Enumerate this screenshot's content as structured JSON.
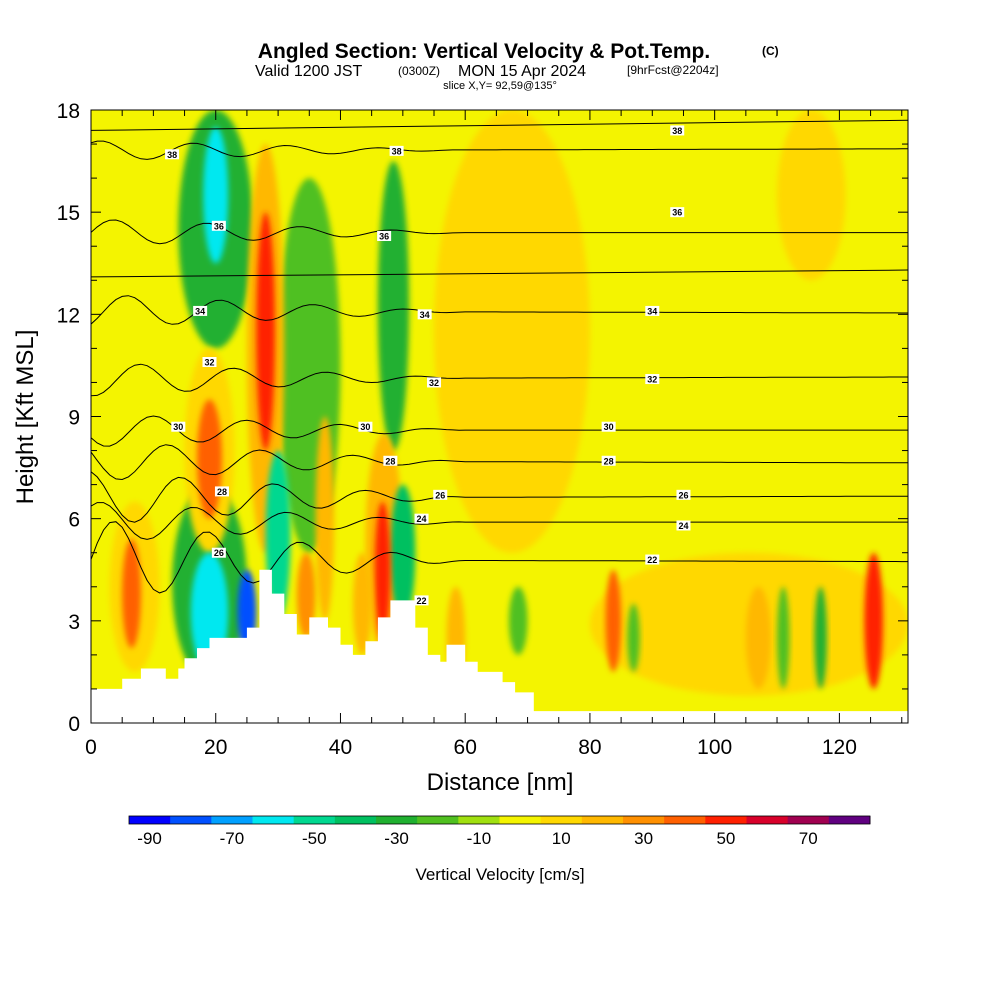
{
  "title": {
    "main": "Angled Section: Vertical Velocity & Pot.Temp.",
    "units": "(C)",
    "valid_prefix": "Valid 1200 JST",
    "valid_zulu": "(0300Z)",
    "valid_date": "MON 15 Apr 2024",
    "forecast": "[9hrFcst@2204z]",
    "slice": "slice X,Y= 92,59@135°"
  },
  "chart_data": {
    "type": "heatmap",
    "xlabel": "Distance [nm]",
    "ylabel": "Height [Kft MSL]",
    "xlim": [
      0,
      131
    ],
    "ylim": [
      0,
      18
    ],
    "x_ticks": [
      0,
      20,
      40,
      60,
      80,
      100,
      120
    ],
    "y_ticks": [
      0,
      3,
      6,
      9,
      12,
      15,
      18
    ],
    "colorbar": {
      "label": "Vertical Velocity [cm/s]",
      "tick_labels": [
        -90,
        -70,
        -50,
        -30,
        -10,
        10,
        30,
        50,
        70
      ],
      "levels": [
        -90,
        -80,
        -70,
        -60,
        -50,
        -40,
        -30,
        -20,
        -10,
        0,
        10,
        20,
        30,
        40,
        50,
        60,
        70,
        80
      ],
      "colors": [
        "#0000ff",
        "#0050ff",
        "#00a0ff",
        "#00e8f0",
        "#00d890",
        "#00c060",
        "#20b030",
        "#50c020",
        "#a0e010",
        "#f4f400",
        "#ffd800",
        "#ffb800",
        "#ff9000",
        "#ff6000",
        "#ff2000",
        "#d8002a",
        "#a00050",
        "#600080"
      ]
    },
    "background_value": 0,
    "cells": [
      {
        "x": [
          5,
          8
        ],
        "y": [
          2.2,
          5.4
        ],
        "v": 45
      },
      {
        "x": [
          3,
          11
        ],
        "y": [
          1.5,
          6.5
        ],
        "v": 15
      },
      {
        "x": [
          16,
          22
        ],
        "y": [
          1.5,
          5
        ],
        "v": -55
      },
      {
        "x": [
          13,
          25
        ],
        "y": [
          1.2,
          7
        ],
        "v": -25
      },
      {
        "x": [
          17,
          21
        ],
        "y": [
          6,
          9.5
        ],
        "v": 45
      },
      {
        "x": [
          15,
          23
        ],
        "y": [
          5,
          11
        ],
        "v": 15
      },
      {
        "x": [
          18,
          22
        ],
        "y": [
          13.5,
          17.5
        ],
        "v": -55
      },
      {
        "x": [
          14,
          26
        ],
        "y": [
          11,
          18
        ],
        "v": -25
      },
      {
        "x": [
          23.5,
          26.5
        ],
        "y": [
          2,
          4.5
        ],
        "v": -75
      },
      {
        "x": [
          26.5,
          29.5
        ],
        "y": [
          8,
          15
        ],
        "v": 55
      },
      {
        "x": [
          25,
          31
        ],
        "y": [
          5,
          17
        ],
        "v": 25
      },
      {
        "x": [
          28,
          32
        ],
        "y": [
          3,
          8
        ],
        "v": -45
      },
      {
        "x": [
          30,
          40
        ],
        "y": [
          5,
          16
        ],
        "v": -20
      },
      {
        "x": [
          33,
          36
        ],
        "y": [
          2.5,
          5
        ],
        "v": 35
      },
      {
        "x": [
          36,
          39
        ],
        "y": [
          3,
          9
        ],
        "v": 25
      },
      {
        "x": [
          42,
          45
        ],
        "y": [
          2,
          5
        ],
        "v": 25
      },
      {
        "x": [
          45.5,
          48
        ],
        "y": [
          2.5,
          6.5
        ],
        "v": 55
      },
      {
        "x": [
          44,
          50
        ],
        "y": [
          2,
          8.5
        ],
        "v": 20
      },
      {
        "x": [
          48,
          52
        ],
        "y": [
          3,
          7
        ],
        "v": -35
      },
      {
        "x": [
          46,
          51
        ],
        "y": [
          8,
          16.5
        ],
        "v": -25
      },
      {
        "x": [
          57,
          60
        ],
        "y": [
          1,
          4
        ],
        "v": 20
      },
      {
        "x": [
          67,
          70
        ],
        "y": [
          2,
          4
        ],
        "v": -15
      },
      {
        "x": [
          82.5,
          85
        ],
        "y": [
          1.5,
          4.5
        ],
        "v": 45
      },
      {
        "x": [
          86,
          88
        ],
        "y": [
          1.5,
          3.5
        ],
        "v": -15
      },
      {
        "x": [
          105,
          109
        ],
        "y": [
          1,
          4
        ],
        "v": 25
      },
      {
        "x": [
          110,
          112
        ],
        "y": [
          1,
          4
        ],
        "v": -15
      },
      {
        "x": [
          116,
          118
        ],
        "y": [
          1,
          4
        ],
        "v": -25
      },
      {
        "x": [
          124,
          127
        ],
        "y": [
          1,
          5
        ],
        "v": 55
      },
      {
        "x": [
          80,
          131
        ],
        "y": [
          0.8,
          5
        ],
        "v": 12
      },
      {
        "x": [
          55,
          80
        ],
        "y": [
          5,
          18
        ],
        "v": 12
      },
      {
        "x": [
          110,
          121
        ],
        "y": [
          13,
          18
        ],
        "v": 12
      }
    ],
    "terrain": [
      [
        0,
        1
      ],
      [
        5,
        1
      ],
      [
        5,
        1.3
      ],
      [
        8,
        1.3
      ],
      [
        8,
        1.6
      ],
      [
        12,
        1.6
      ],
      [
        12,
        1.3
      ],
      [
        14,
        1.3
      ],
      [
        14,
        1.6
      ],
      [
        15,
        1.6
      ],
      [
        15,
        1.9
      ],
      [
        17,
        1.9
      ],
      [
        17,
        2.2
      ],
      [
        19,
        2.2
      ],
      [
        19,
        2.5
      ],
      [
        25,
        2.5
      ],
      [
        25,
        2.8
      ],
      [
        27,
        2.8
      ],
      [
        27,
        4.5
      ],
      [
        29,
        4.5
      ],
      [
        29,
        3.8
      ],
      [
        31,
        3.8
      ],
      [
        31,
        3.2
      ],
      [
        33,
        3.2
      ],
      [
        33,
        2.6
      ],
      [
        35,
        2.6
      ],
      [
        35,
        3.1
      ],
      [
        38,
        3.1
      ],
      [
        38,
        2.8
      ],
      [
        40,
        2.8
      ],
      [
        40,
        2.3
      ],
      [
        42,
        2.3
      ],
      [
        42,
        2
      ],
      [
        44,
        2
      ],
      [
        44,
        2.4
      ],
      [
        46,
        2.4
      ],
      [
        46,
        3.1
      ],
      [
        48,
        3.1
      ],
      [
        48,
        3.6
      ],
      [
        52,
        3.6
      ],
      [
        52,
        2.8
      ],
      [
        54,
        2.8
      ],
      [
        54,
        2
      ],
      [
        56,
        2
      ],
      [
        56,
        1.8
      ],
      [
        57,
        1.8
      ],
      [
        57,
        2.3
      ],
      [
        60,
        2.3
      ],
      [
        60,
        1.8
      ],
      [
        62,
        1.8
      ],
      [
        62,
        1.5
      ],
      [
        66,
        1.5
      ],
      [
        66,
        1.2
      ],
      [
        68,
        1.2
      ],
      [
        68,
        0.9
      ],
      [
        71,
        0.9
      ],
      [
        71,
        0.35
      ],
      [
        131,
        0.35
      ],
      [
        131,
        0
      ]
    ],
    "isentropes": [
      {
        "label": "22",
        "base": 4.8,
        "amp": 1.2
      },
      {
        "label": "24",
        "base": 5.9,
        "amp": 0.6
      },
      {
        "label": "26",
        "base": 6.6,
        "amp": 0.8
      },
      {
        "label": "28",
        "base": 7.7,
        "amp": 0.6
      },
      {
        "label": "30",
        "base": 8.6,
        "amp": 0.5
      },
      {
        "label": "32",
        "base": 10.1,
        "amp": 0.5
      },
      {
        "label": "34",
        "base": 12.1,
        "amp": 0.5
      },
      {
        "label": "36",
        "base": 14.4,
        "amp": 0.4
      },
      {
        "label": "38",
        "base": 16.8,
        "amp": 0.3
      }
    ],
    "contour_labels": [
      {
        "text": "38",
        "x": 13,
        "y": 16.7
      },
      {
        "text": "38",
        "x": 49,
        "y": 16.8
      },
      {
        "text": "38",
        "x": 94,
        "y": 17.4
      },
      {
        "text": "36",
        "x": 20.5,
        "y": 14.6
      },
      {
        "text": "36",
        "x": 47,
        "y": 14.3
      },
      {
        "text": "36",
        "x": 94,
        "y": 15
      },
      {
        "text": "34",
        "x": 17.5,
        "y": 12.1
      },
      {
        "text": "34",
        "x": 53.5,
        "y": 12
      },
      {
        "text": "34",
        "x": 90,
        "y": 12.1
      },
      {
        "text": "32",
        "x": 19,
        "y": 10.6
      },
      {
        "text": "32",
        "x": 55,
        "y": 10
      },
      {
        "text": "32",
        "x": 90,
        "y": 10.1
      },
      {
        "text": "30",
        "x": 14,
        "y": 8.7
      },
      {
        "text": "30",
        "x": 44,
        "y": 8.7
      },
      {
        "text": "30",
        "x": 83,
        "y": 8.7
      },
      {
        "text": "28",
        "x": 48,
        "y": 7.7
      },
      {
        "text": "28",
        "x": 83,
        "y": 7.7
      },
      {
        "text": "28",
        "x": 21,
        "y": 6.8
      },
      {
        "text": "26",
        "x": 56,
        "y": 6.7
      },
      {
        "text": "26",
        "x": 95,
        "y": 6.7
      },
      {
        "text": "26",
        "x": 20.5,
        "y": 5
      },
      {
        "text": "24",
        "x": 53,
        "y": 6
      },
      {
        "text": "24",
        "x": 95,
        "y": 5.8
      },
      {
        "text": "22",
        "x": 53,
        "y": 3.6
      },
      {
        "text": "22",
        "x": 90,
        "y": 4.8
      }
    ]
  }
}
